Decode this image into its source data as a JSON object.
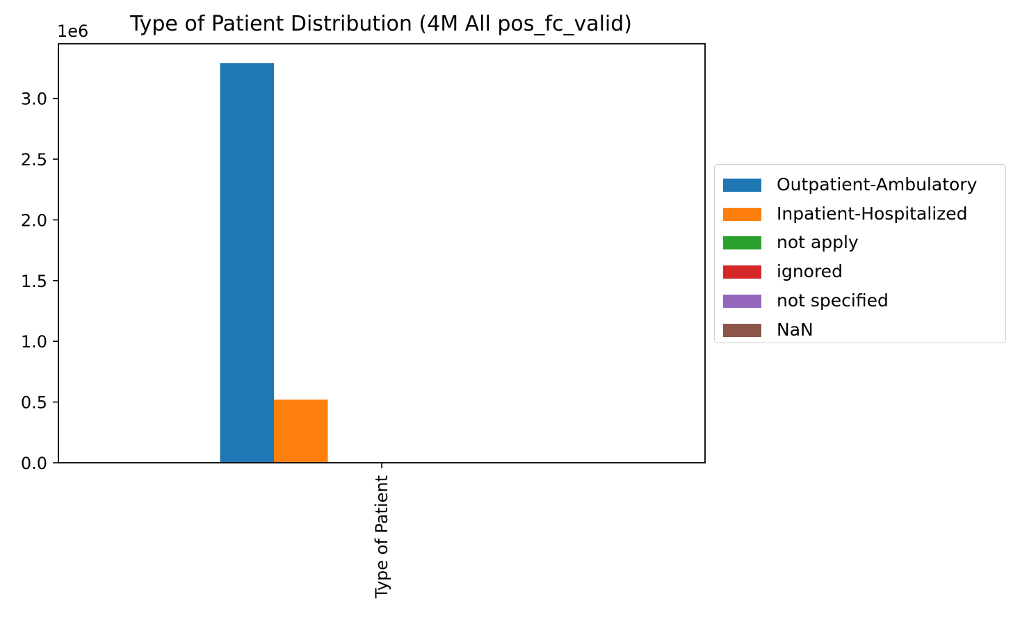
{
  "chart_data": {
    "type": "bar",
    "title": "Type of Patient Distribution (4M All pos_fc_valid)",
    "categories": [
      "Type of Patient"
    ],
    "xlabel": "",
    "ylabel": "",
    "offset_label": "1e6",
    "ylim": [
      0,
      3.45
    ],
    "yticks": [
      "0.0",
      "0.5",
      "1.0",
      "1.5",
      "2.0",
      "2.5",
      "3.0"
    ],
    "grid": false,
    "legend_position": "center-right, outside",
    "series": [
      {
        "name": "Outpatient-Ambulatory",
        "color": "#1f77b4",
        "values": [
          3.29
        ]
      },
      {
        "name": "Inpatient-Hospitalized",
        "color": "#ff7f0e",
        "values": [
          0.52
        ]
      },
      {
        "name": "not apply",
        "color": "#2ca02c",
        "values": [
          0
        ]
      },
      {
        "name": "ignored",
        "color": "#d62728",
        "values": [
          0
        ]
      },
      {
        "name": "not specified",
        "color": "#9467bd",
        "values": [
          0
        ]
      },
      {
        "name": "NaN",
        "color": "#8c564b",
        "values": [
          0
        ]
      }
    ]
  }
}
